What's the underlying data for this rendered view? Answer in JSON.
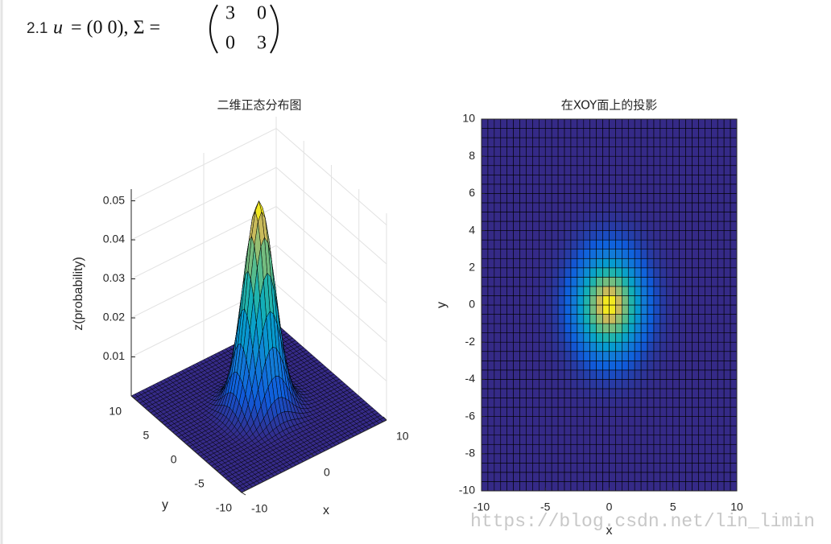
{
  "heading": {
    "number": "2.1",
    "var": "u",
    "rest": "= (0 0), Σ =",
    "matrix": [
      [
        3,
        0
      ],
      [
        0,
        3
      ]
    ]
  },
  "chart_data": [
    {
      "type": "surface3d",
      "title": "二维正态分布图",
      "xlabel": "x",
      "ylabel": "y",
      "zlabel": "z(probability)",
      "xlim": [
        -10,
        10
      ],
      "ylim": [
        -10,
        10
      ],
      "zlim": [
        0,
        0.053
      ],
      "xticks": [
        -10,
        0,
        10
      ],
      "yticks": [
        -10,
        -5,
        0,
        5,
        10
      ],
      "zticks": [
        0.01,
        0.02,
        0.03,
        0.04,
        0.05
      ],
      "mean": [
        0,
        0
      ],
      "cov": [
        [
          3,
          0
        ],
        [
          0,
          3
        ]
      ],
      "step": 0.5,
      "colormap": "parula",
      "grid": true
    },
    {
      "type": "heatmap",
      "title": "在XOY面上的投影",
      "xlabel": "x",
      "ylabel": "y",
      "xlim": [
        -10,
        10
      ],
      "ylim": [
        -10,
        10
      ],
      "xticks": [
        -10,
        -5,
        0,
        5,
        10
      ],
      "yticks": [
        -10,
        -8,
        -6,
        -4,
        -2,
        0,
        2,
        4,
        6,
        8,
        10
      ],
      "mean": [
        0,
        0
      ],
      "cov": [
        [
          3,
          0
        ],
        [
          0,
          3
        ]
      ],
      "step": 0.5,
      "clim": [
        0,
        0.053
      ],
      "colormap": "parula"
    }
  ],
  "watermark": "https://blog.csdn.net/lin_limin"
}
